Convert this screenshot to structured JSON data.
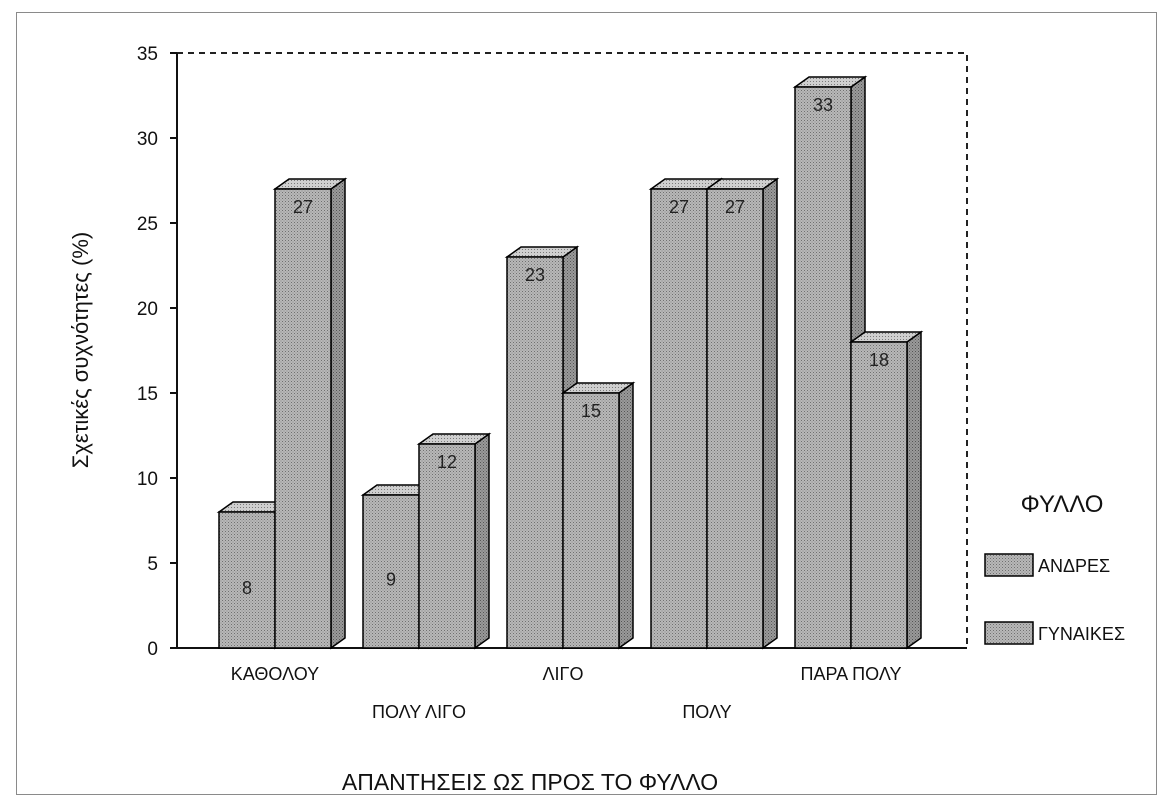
{
  "chart_data": {
    "type": "bar",
    "categories": [
      "ΚΑΘΟΛΟΥ",
      "ΠΟΛΥ ΛΙΓΟ",
      "ΛΙΓΟ",
      "ΠΟΛΥ",
      "ΠΑΡΑ ΠΟΛΥ"
    ],
    "series": [
      {
        "name": "ΑΝΔΡΕΣ",
        "values": [
          8,
          9,
          23,
          27,
          33
        ]
      },
      {
        "name": "ΓΥΝΑΙΚΕΣ",
        "values": [
          27,
          12,
          15,
          27,
          18
        ]
      }
    ],
    "title": "",
    "xlabel": "ΑΠΑΝΤΗΣΕΙΣ ΩΣ ΠΡΟΣ ΤΟ ΦΥΛΛΟ",
    "ylabel": "Σχετικές συχνότητες (%)",
    "ylim": [
      0,
      35
    ],
    "yticks": [
      0,
      5,
      10,
      15,
      20,
      25,
      30,
      35
    ],
    "grid": false,
    "legend": {
      "title": "ΦΥΛΛΟ",
      "placement": "right"
    },
    "colors": {
      "bar_front": "#a9a9a9",
      "bar_side": "#8c8c8c",
      "bar_top": "#c2c2c2",
      "edge": "#000000"
    }
  }
}
